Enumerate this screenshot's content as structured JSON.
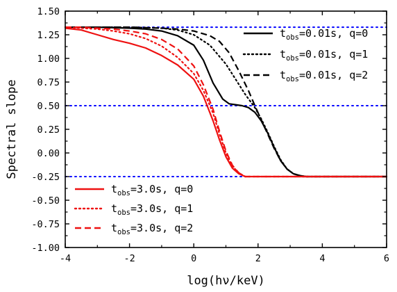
{
  "chart_data": {
    "type": "line",
    "title": "",
    "xlabel": "log(hν/keV)",
    "ylabel": "Spectral slope",
    "xlim": [
      -4,
      6
    ],
    "ylim": [
      -1.0,
      1.5
    ],
    "xticks": [
      "-4",
      "-2",
      "0",
      "2",
      "4",
      "6"
    ],
    "yticks": [
      "-1.00",
      "-0.75",
      "-0.50",
      "-0.25",
      "0.00",
      "0.25",
      "0.50",
      "0.75",
      "1.00",
      "1.25",
      "1.50"
    ],
    "grid": false,
    "reference_lines": [
      {
        "y": 1.33,
        "style": "dotted",
        "color": "#0000ff"
      },
      {
        "y": 0.5,
        "style": "dotted",
        "color": "#0000ff"
      },
      {
        "y": -0.25,
        "style": "dotted",
        "color": "#0000ff"
      }
    ],
    "legend_top_right": [
      {
        "t": "t",
        "sub": "obs",
        "rest": "=0.01s, q=0",
        "series": 0
      },
      {
        "t": "t",
        "sub": "obs",
        "rest": "=0.01s, q=1",
        "series": 1
      },
      {
        "t": "t",
        "sub": "obs",
        "rest": "=0.01s, q=2",
        "series": 2
      }
    ],
    "legend_bottom_left": [
      {
        "t": "t",
        "sub": "obs",
        "rest": "=3.0s, q=0",
        "series": 3
      },
      {
        "t": "t",
        "sub": "obs",
        "rest": "=3.0s, q=1",
        "series": 4
      },
      {
        "t": "t",
        "sub": "obs",
        "rest": "=3.0s, q=2",
        "series": 5
      }
    ],
    "series": [
      {
        "color": "#000000",
        "style": "solid",
        "x": [
          -4,
          -3,
          -2,
          -1.5,
          -1,
          -0.5,
          0,
          0.3,
          0.6,
          0.9,
          1.1,
          1.3,
          1.5,
          1.7,
          1.9,
          2.1,
          2.3,
          2.5,
          2.7,
          2.9,
          3.1,
          3.3,
          3.5,
          4,
          6
        ],
        "y": [
          1.33,
          1.33,
          1.32,
          1.31,
          1.29,
          1.24,
          1.14,
          0.98,
          0.74,
          0.57,
          0.52,
          0.51,
          0.5,
          0.48,
          0.43,
          0.34,
          0.21,
          0.06,
          -0.08,
          -0.17,
          -0.22,
          -0.24,
          -0.25,
          -0.25,
          -0.25
        ]
      },
      {
        "color": "#000000",
        "style": "dotted",
        "x": [
          -4,
          -3,
          -2,
          -1,
          -0.5,
          0,
          0.5,
          1,
          1.3,
          1.6,
          1.9,
          2.1,
          2.3,
          2.5,
          2.7,
          2.9,
          3.1,
          3.3,
          3.5,
          4,
          6
        ],
        "y": [
          1.33,
          1.33,
          1.33,
          1.32,
          1.3,
          1.25,
          1.14,
          0.94,
          0.78,
          0.62,
          0.48,
          0.36,
          0.22,
          0.07,
          -0.07,
          -0.17,
          -0.22,
          -0.24,
          -0.25,
          -0.25,
          -0.25
        ]
      },
      {
        "color": "#000000",
        "style": "dashed",
        "x": [
          -4,
          -3,
          -2,
          -1,
          -0.5,
          0,
          0.5,
          0.8,
          1.1,
          1.4,
          1.7,
          1.9,
          2.1,
          2.3,
          2.5,
          2.7,
          2.9,
          3.1,
          3.3,
          3.5,
          4,
          6
        ],
        "y": [
          1.33,
          1.33,
          1.33,
          1.32,
          1.31,
          1.29,
          1.24,
          1.18,
          1.06,
          0.87,
          0.66,
          0.5,
          0.35,
          0.2,
          0.05,
          -0.08,
          -0.17,
          -0.22,
          -0.24,
          -0.25,
          -0.25,
          -0.25
        ]
      },
      {
        "color": "#ee1111",
        "style": "solid",
        "x": [
          -4,
          -3.5,
          -3,
          -2.5,
          -2,
          -1.5,
          -1,
          -0.5,
          0,
          0.3,
          0.6,
          0.8,
          1.0,
          1.2,
          1.4,
          1.6,
          2,
          6
        ],
        "y": [
          1.32,
          1.3,
          1.25,
          1.2,
          1.16,
          1.11,
          1.03,
          0.93,
          0.78,
          0.6,
          0.34,
          0.14,
          -0.04,
          -0.16,
          -0.22,
          -0.25,
          -0.25,
          -0.25
        ]
      },
      {
        "color": "#ee1111",
        "style": "dotted",
        "x": [
          -4,
          -3.5,
          -3,
          -2.5,
          -2,
          -1.5,
          -1,
          -0.5,
          0,
          0.3,
          0.6,
          0.8,
          1.0,
          1.2,
          1.4,
          1.6,
          2,
          6
        ],
        "y": [
          1.33,
          1.32,
          1.31,
          1.29,
          1.26,
          1.21,
          1.13,
          1.01,
          0.84,
          0.66,
          0.42,
          0.2,
          0.0,
          -0.14,
          -0.21,
          -0.25,
          -0.25,
          -0.25
        ]
      },
      {
        "color": "#ee1111",
        "style": "dashed",
        "x": [
          -4,
          -3.5,
          -3,
          -2.5,
          -2,
          -1.5,
          -1,
          -0.5,
          0,
          0.3,
          0.6,
          0.8,
          1.0,
          1.2,
          1.4,
          1.6,
          2,
          6
        ],
        "y": [
          1.33,
          1.33,
          1.32,
          1.31,
          1.29,
          1.26,
          1.2,
          1.1,
          0.92,
          0.72,
          0.46,
          0.23,
          0.02,
          -0.13,
          -0.21,
          -0.25,
          -0.25,
          -0.25
        ]
      }
    ]
  }
}
